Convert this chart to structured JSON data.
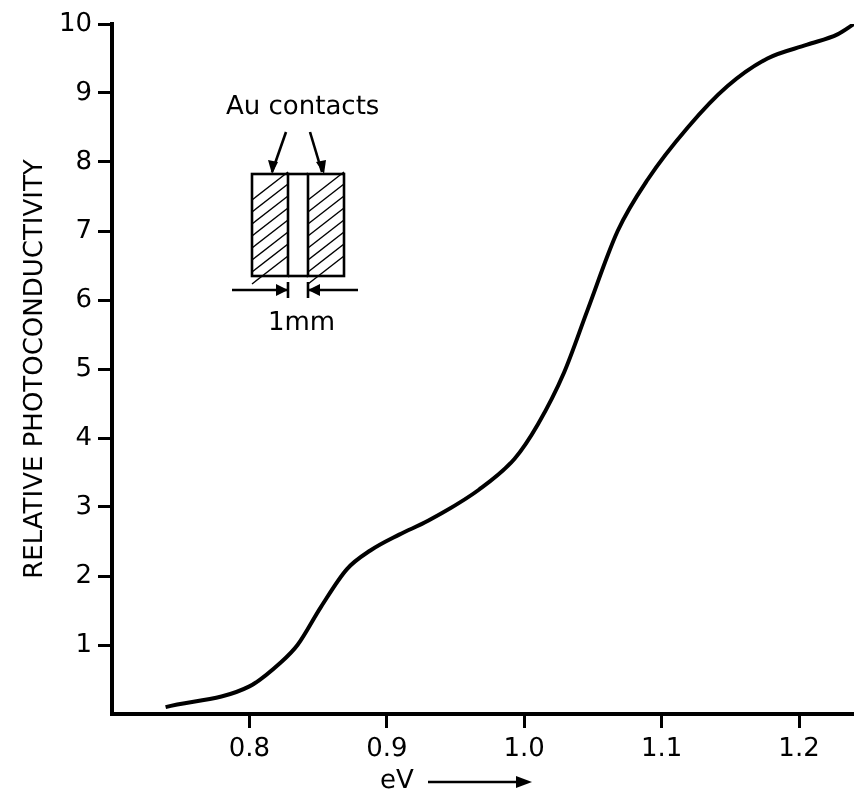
{
  "chart_data": {
    "type": "line",
    "xlabel": "eV",
    "ylabel": "RELATIVE PHOTOCONDUCTIVITY",
    "annotations": [
      "Au contacts",
      "1mm"
    ],
    "xlim": [
      0.7,
      1.24
    ],
    "xticks": [
      0.8,
      0.9,
      {
        "value": 1.0,
        "label": "1.0"
      },
      1.1,
      1.2
    ],
    "ylim": [
      0,
      10
    ],
    "yticks": [
      1,
      2,
      3,
      4,
      5,
      6,
      7,
      8,
      9,
      10
    ],
    "series": [
      {
        "color": "#000000",
        "x": [
          0.739,
          0.8,
          0.823,
          0.835,
          0.852,
          0.871,
          0.888,
          0.909,
          0.93,
          0.967,
          0.993,
          1.01,
          1.029,
          1.046,
          1.068,
          1.09,
          1.119,
          1.148,
          1.177,
          1.206,
          1.228,
          1.24
        ],
        "values": [
          0.1,
          0.4,
          0.75,
          1.0,
          1.55,
          2.1,
          2.37,
          2.6,
          2.8,
          3.25,
          3.7,
          4.2,
          4.95,
          5.85,
          7.0,
          7.75,
          8.5,
          9.1,
          9.5,
          9.7,
          9.85,
          10.0
        ]
      }
    ],
    "grid": false,
    "legend": false,
    "marker": "none",
    "line_style": "solid"
  }
}
